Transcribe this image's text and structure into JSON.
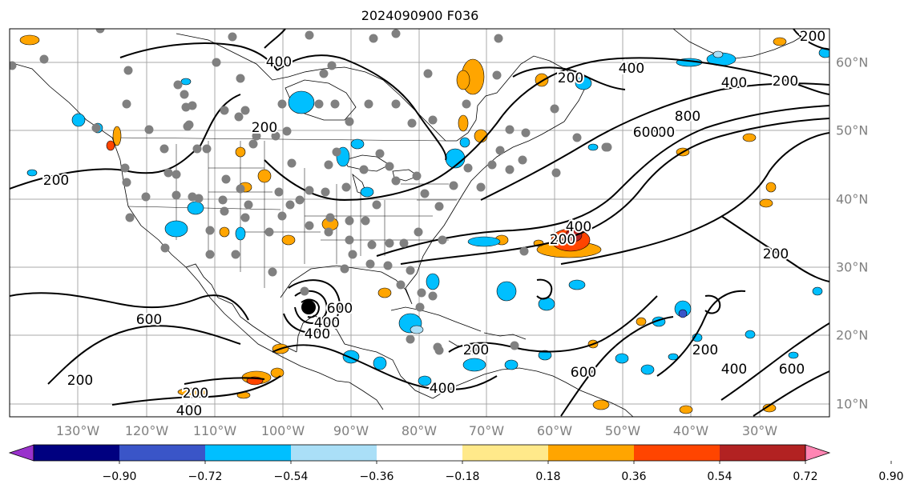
{
  "title": "2024090900 F036",
  "axes": {
    "lon_labels": [
      "130°W",
      "120°W",
      "110°W",
      "100°W",
      "90°W",
      "80°W",
      "70°W",
      "60°W",
      "50°W",
      "40°W",
      "30°W"
    ],
    "lat_labels": [
      "60°N",
      "50°N",
      "40°N",
      "30°N",
      "20°N",
      "10°N"
    ]
  },
  "contour_labels": [
    "200",
    "400",
    "600",
    "800",
    "200",
    "400",
    "200",
    "400",
    "600",
    "200",
    "200",
    "400",
    "600",
    "400",
    "200",
    "200",
    "400",
    "600",
    "400",
    "600",
    "200",
    "400",
    "200",
    "200",
    "600",
    "400",
    "200"
  ],
  "colorbar": {
    "tick_labels": [
      "−0.90",
      "−0.72",
      "−0.54",
      "−0.36",
      "−0.18",
      "0.18",
      "0.36",
      "0.54",
      "0.72",
      "0.90"
    ],
    "colors": [
      "#9932cc",
      "#000080",
      "#3a55c8",
      "#00bfff",
      "#aadff7",
      "#ffffff",
      "#ffe98a",
      "#ffa500",
      "#ff4500",
      "#b22222",
      "#ff85b3"
    ],
    "extend": "both"
  },
  "colors": {
    "grid": "#a9a9a9",
    "contour": "#000000",
    "station_marker": "#808080",
    "storm_marker": "#000000"
  }
}
